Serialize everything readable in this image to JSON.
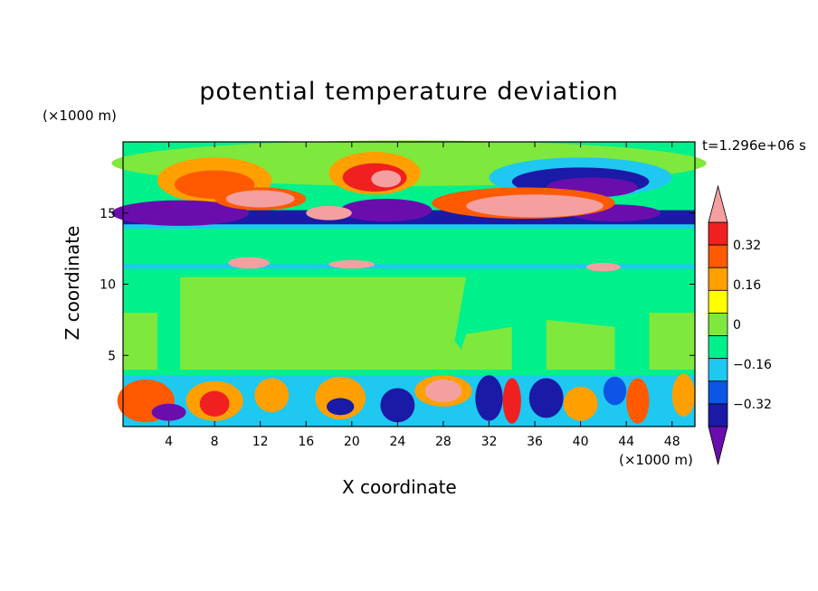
{
  "chart_data": {
    "type": "heatmap",
    "title": "potential temperature deviation",
    "xlabel": "X coordinate",
    "ylabel": "Z coordinate",
    "x_multiplier": "(×1000 m)",
    "y_multiplier": "(×1000 m)",
    "time_label": "t=1.296e+06 s",
    "xlim": [
      0,
      50
    ],
    "ylim": [
      0,
      20
    ],
    "x_ticks": [
      "4",
      "8",
      "12",
      "16",
      "20",
      "24",
      "28",
      "32",
      "36",
      "40",
      "44",
      "48"
    ],
    "y_ticks": [
      "5",
      "10",
      "15"
    ],
    "colorbar": {
      "labels": [
        "0.32",
        "0.16",
        "0",
        "-0.16",
        "-0.32"
      ],
      "levels": [
        -0.4,
        -0.32,
        -0.24,
        -0.16,
        -0.08,
        0,
        0.08,
        0.16,
        0.24,
        0.32,
        0.4
      ],
      "colors": [
        "#6a0dad",
        "#1a1aa6",
        "#0d55e6",
        "#1ec8f0",
        "#00f08c",
        "#7ee83c",
        "#ffff00",
        "#ffa000",
        "#ff5a00",
        "#f02020",
        "#f4a0a0"
      ]
    },
    "colors": {
      "below_min": "#6a0dad",
      "above_max": "#f4a0a0",
      "background": "#00f08c"
    }
  }
}
